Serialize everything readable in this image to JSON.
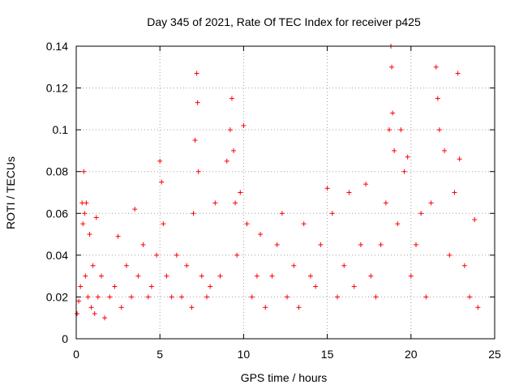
{
  "chart_data": {
    "type": "scatter",
    "title": "Day 345 of 2021, Rate Of TEC Index for receiver p425",
    "xlabel": "GPS time / hours",
    "ylabel": "ROTI / TECUs",
    "xlim": [
      0,
      25
    ],
    "ylim": [
      0,
      0.14
    ],
    "xticks": [
      "0",
      "5",
      "10",
      "15",
      "20",
      "25"
    ],
    "yticks": [
      "0",
      "0.02",
      "0.04",
      "0.06",
      "0.08",
      "0.1",
      "0.12",
      "0.14"
    ],
    "grid": true,
    "marker": "plus",
    "color": "#ff0000",
    "series": [
      {
        "x": [
          0.05,
          0.15,
          0.25,
          0.35,
          0.4,
          0.45,
          0.5,
          0.55,
          0.6,
          0.7,
          0.8,
          0.9,
          1.0,
          1.1,
          1.2,
          1.3,
          1.5,
          1.7,
          2.0,
          2.3,
          2.5,
          2.7,
          3.0,
          3.3,
          3.5,
          3.7,
          4.0,
          4.3,
          4.5,
          4.8,
          5.0,
          5.1,
          5.2,
          5.4,
          5.7,
          6.0,
          6.3,
          6.6,
          6.9,
          7.0,
          7.1,
          7.2,
          7.25,
          7.3,
          7.5,
          7.8,
          8.0,
          8.3,
          8.6,
          9.0,
          9.2,
          9.3,
          9.4,
          9.5,
          9.6,
          9.8,
          10.0,
          10.2,
          10.5,
          10.8,
          11.0,
          11.3,
          11.7,
          12.0,
          12.3,
          12.6,
          13.0,
          13.3,
          13.6,
          14.0,
          14.3,
          14.6,
          15.0,
          15.3,
          15.6,
          16.0,
          16.3,
          16.6,
          17.0,
          17.3,
          17.6,
          17.9,
          18.2,
          18.5,
          18.7,
          18.8,
          18.85,
          18.9,
          19.0,
          19.2,
          19.4,
          19.6,
          19.8,
          20.0,
          20.3,
          20.6,
          20.9,
          21.2,
          21.5,
          21.6,
          21.7,
          22.0,
          22.3,
          22.6,
          22.8,
          22.9,
          23.2,
          23.5,
          23.8,
          24.0
        ],
        "y": [
          0.012,
          0.018,
          0.025,
          0.065,
          0.055,
          0.08,
          0.06,
          0.03,
          0.065,
          0.02,
          0.05,
          0.015,
          0.035,
          0.012,
          0.058,
          0.02,
          0.03,
          0.01,
          0.02,
          0.025,
          0.049,
          0.015,
          0.035,
          0.02,
          0.062,
          0.03,
          0.045,
          0.02,
          0.025,
          0.04,
          0.085,
          0.075,
          0.055,
          0.03,
          0.02,
          0.04,
          0.02,
          0.035,
          0.015,
          0.06,
          0.095,
          0.127,
          0.113,
          0.08,
          0.03,
          0.02,
          0.025,
          0.065,
          0.03,
          0.085,
          0.1,
          0.115,
          0.09,
          0.065,
          0.04,
          0.07,
          0.102,
          0.055,
          0.02,
          0.03,
          0.05,
          0.015,
          0.03,
          0.045,
          0.06,
          0.02,
          0.035,
          0.015,
          0.055,
          0.03,
          0.025,
          0.045,
          0.072,
          0.06,
          0.02,
          0.035,
          0.07,
          0.025,
          0.045,
          0.074,
          0.03,
          0.02,
          0.045,
          0.065,
          0.1,
          0.14,
          0.13,
          0.108,
          0.09,
          0.055,
          0.1,
          0.08,
          0.087,
          0.03,
          0.045,
          0.06,
          0.02,
          0.065,
          0.13,
          0.115,
          0.1,
          0.09,
          0.04,
          0.07,
          0.127,
          0.086,
          0.035,
          0.02,
          0.057,
          0.015
        ]
      }
    ]
  }
}
